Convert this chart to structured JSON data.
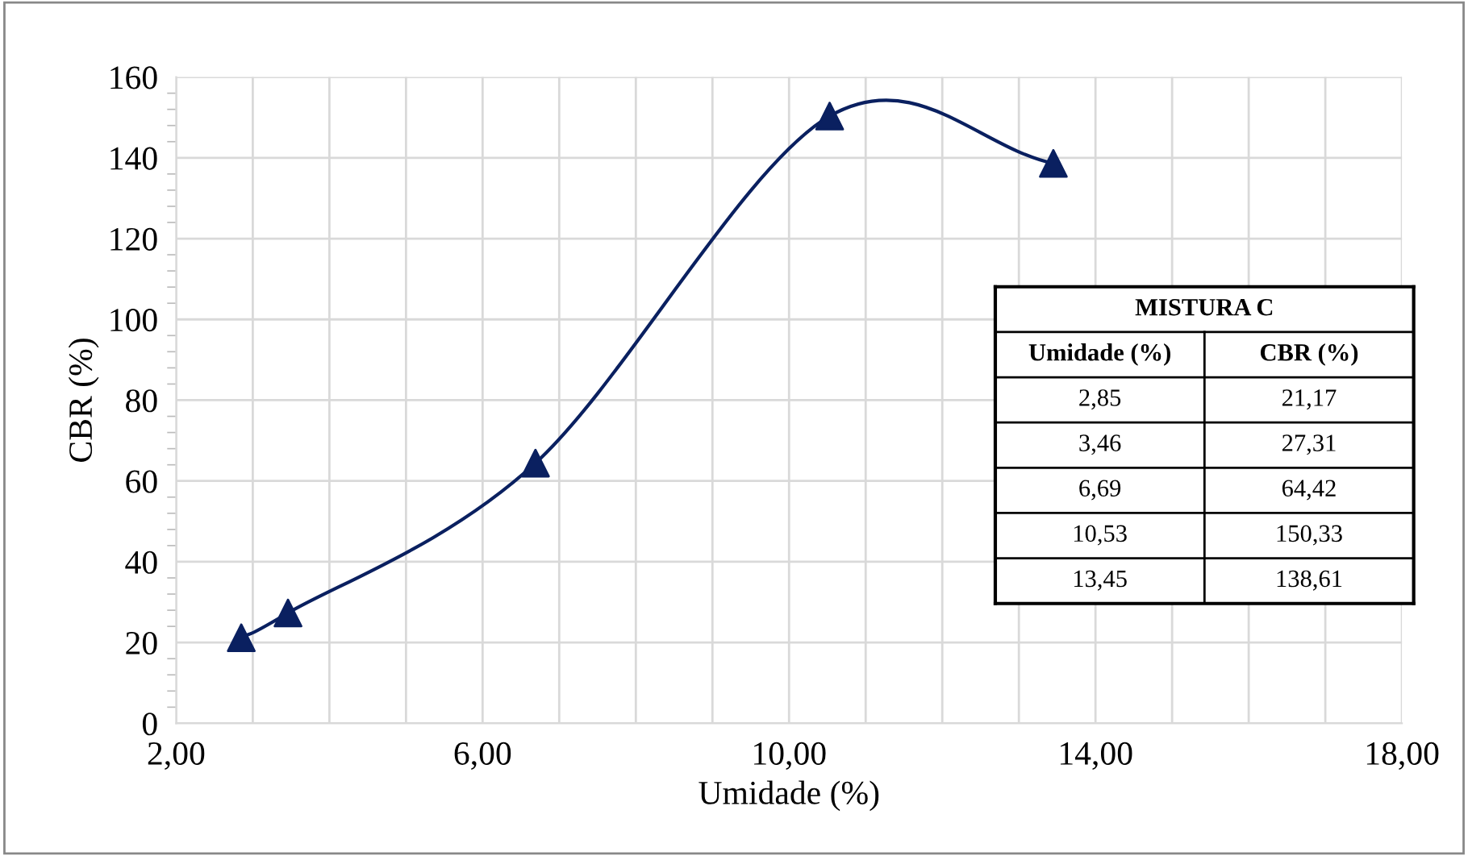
{
  "chart_data": [
    {
      "type": "line",
      "xlabel": "Umidade (%)",
      "ylabel": "CBR (%)",
      "x": [
        2.85,
        3.46,
        6.69,
        10.53,
        13.45
      ],
      "series": [
        {
          "color": "#0a2060",
          "values": [
            21.17,
            27.31,
            64.42,
            150.33,
            138.61
          ]
        }
      ],
      "xlim": [
        2,
        18
      ],
      "xticks": [
        {
          "value": 2,
          "label": "2,00"
        },
        {
          "value": 3,
          "label": null
        },
        {
          "value": 4,
          "label": null
        },
        {
          "value": 5,
          "label": null
        },
        {
          "value": 6,
          "label": "6,00"
        },
        {
          "value": 7,
          "label": null
        },
        {
          "value": 8,
          "label": null
        },
        {
          "value": 9,
          "label": null
        },
        {
          "value": 10,
          "label": "10,00"
        },
        {
          "value": 11,
          "label": null
        },
        {
          "value": 12,
          "label": null
        },
        {
          "value": 13,
          "label": null
        },
        {
          "value": 14,
          "label": "14,00"
        },
        {
          "value": 15,
          "label": null
        },
        {
          "value": 16,
          "label": null
        },
        {
          "value": 17,
          "label": null
        },
        {
          "value": 18,
          "label": "18,00"
        }
      ],
      "ylim": [
        0,
        160
      ],
      "yticks": [
        0,
        20,
        40,
        60,
        80,
        100,
        120,
        140,
        160
      ],
      "grid": true,
      "marker": "triangle",
      "line_style": "solid"
    },
    {
      "type": "other",
      "title": "MISTURA C",
      "annotations": [
        "Umidade (%)",
        "CBR (%)",
        "2,85",
        "21,17",
        "3,46",
        "27,31",
        "6,69",
        "64,42",
        "10,53",
        "150,33",
        "13,45",
        "138,61"
      ]
    }
  ]
}
